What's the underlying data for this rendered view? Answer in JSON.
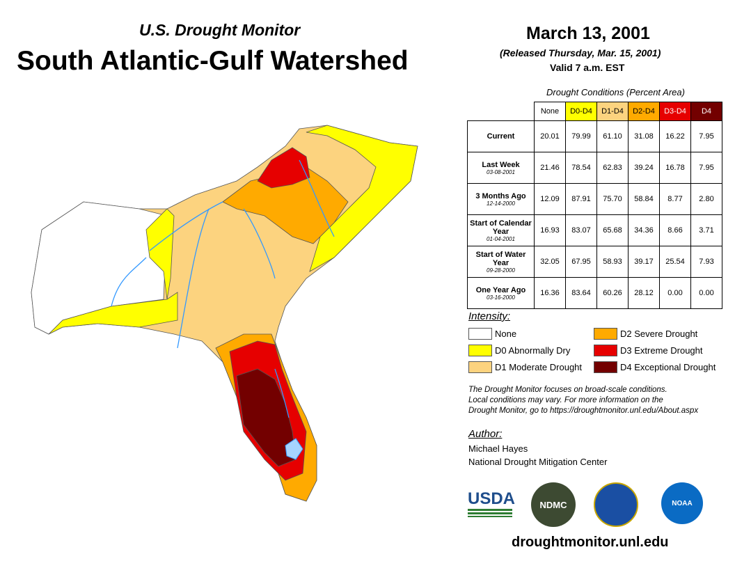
{
  "header": {
    "subtitle": "U.S. Drought Monitor",
    "title": "South Atlantic-Gulf Watershed",
    "date": "March 13, 2001",
    "released": "(Released Thursday, Mar. 15, 2001)",
    "valid": "Valid 7 a.m. EST"
  },
  "table": {
    "caption": "Drought Conditions (Percent Area)",
    "columns": [
      {
        "label": "None",
        "bg": "#ffffff",
        "fg": "#000"
      },
      {
        "label": "D0-D4",
        "bg": "#ffff00",
        "fg": "#000"
      },
      {
        "label": "D1-D4",
        "bg": "#fcd37f",
        "fg": "#000"
      },
      {
        "label": "D2-D4",
        "bg": "#ffaa00",
        "fg": "#000"
      },
      {
        "label": "D3-D4",
        "bg": "#e60000",
        "fg": "#fff"
      },
      {
        "label": "D4",
        "bg": "#730000",
        "fg": "#fff"
      }
    ],
    "rows": [
      {
        "label": "Current",
        "date": "",
        "values": [
          "20.01",
          "79.99",
          "61.10",
          "31.08",
          "16.22",
          "7.95"
        ]
      },
      {
        "label": "Last Week",
        "date": "03-08-2001",
        "values": [
          "21.46",
          "78.54",
          "62.83",
          "39.24",
          "16.78",
          "7.95"
        ]
      },
      {
        "label": "3 Months Ago",
        "date": "12-14-2000",
        "values": [
          "12.09",
          "87.91",
          "75.70",
          "58.84",
          "8.77",
          "2.80"
        ]
      },
      {
        "label": "Start of Calendar Year",
        "date": "01-04-2001",
        "values": [
          "16.93",
          "83.07",
          "65.68",
          "34.36",
          "8.66",
          "3.71"
        ]
      },
      {
        "label": "Start of Water Year",
        "date": "09-28-2000",
        "values": [
          "32.05",
          "67.95",
          "58.93",
          "39.17",
          "25.54",
          "7.93"
        ]
      },
      {
        "label": "One Year Ago",
        "date": "03-16-2000",
        "values": [
          "16.36",
          "83.64",
          "60.26",
          "28.12",
          "0.00",
          "0.00"
        ]
      }
    ]
  },
  "legend": {
    "title": "Intensity:",
    "items": [
      {
        "label": "None",
        "color": "#ffffff"
      },
      {
        "label": "D0 Abnormally Dry",
        "color": "#ffff00"
      },
      {
        "label": "D1 Moderate Drought",
        "color": "#fcd37f"
      },
      {
        "label": "D2 Severe Drought",
        "color": "#ffaa00"
      },
      {
        "label": "D3 Extreme Drought",
        "color": "#e60000"
      },
      {
        "label": "D4 Exceptional Drought",
        "color": "#730000"
      }
    ]
  },
  "note": [
    "The Drought Monitor focuses on broad-scale conditions.",
    "Local conditions may vary. For more information on the",
    "Drought Monitor, go to https://droughtmonitor.unl.edu/About.aspx"
  ],
  "author": {
    "title": "Author:",
    "name": "Michael Hayes",
    "org": "National Drought Mitigation Center"
  },
  "logos": {
    "usda": "USDA",
    "ndmc": "NDMC",
    "noaa": "NOAA"
  },
  "footer_url": "droughtmonitor.unl.edu"
}
